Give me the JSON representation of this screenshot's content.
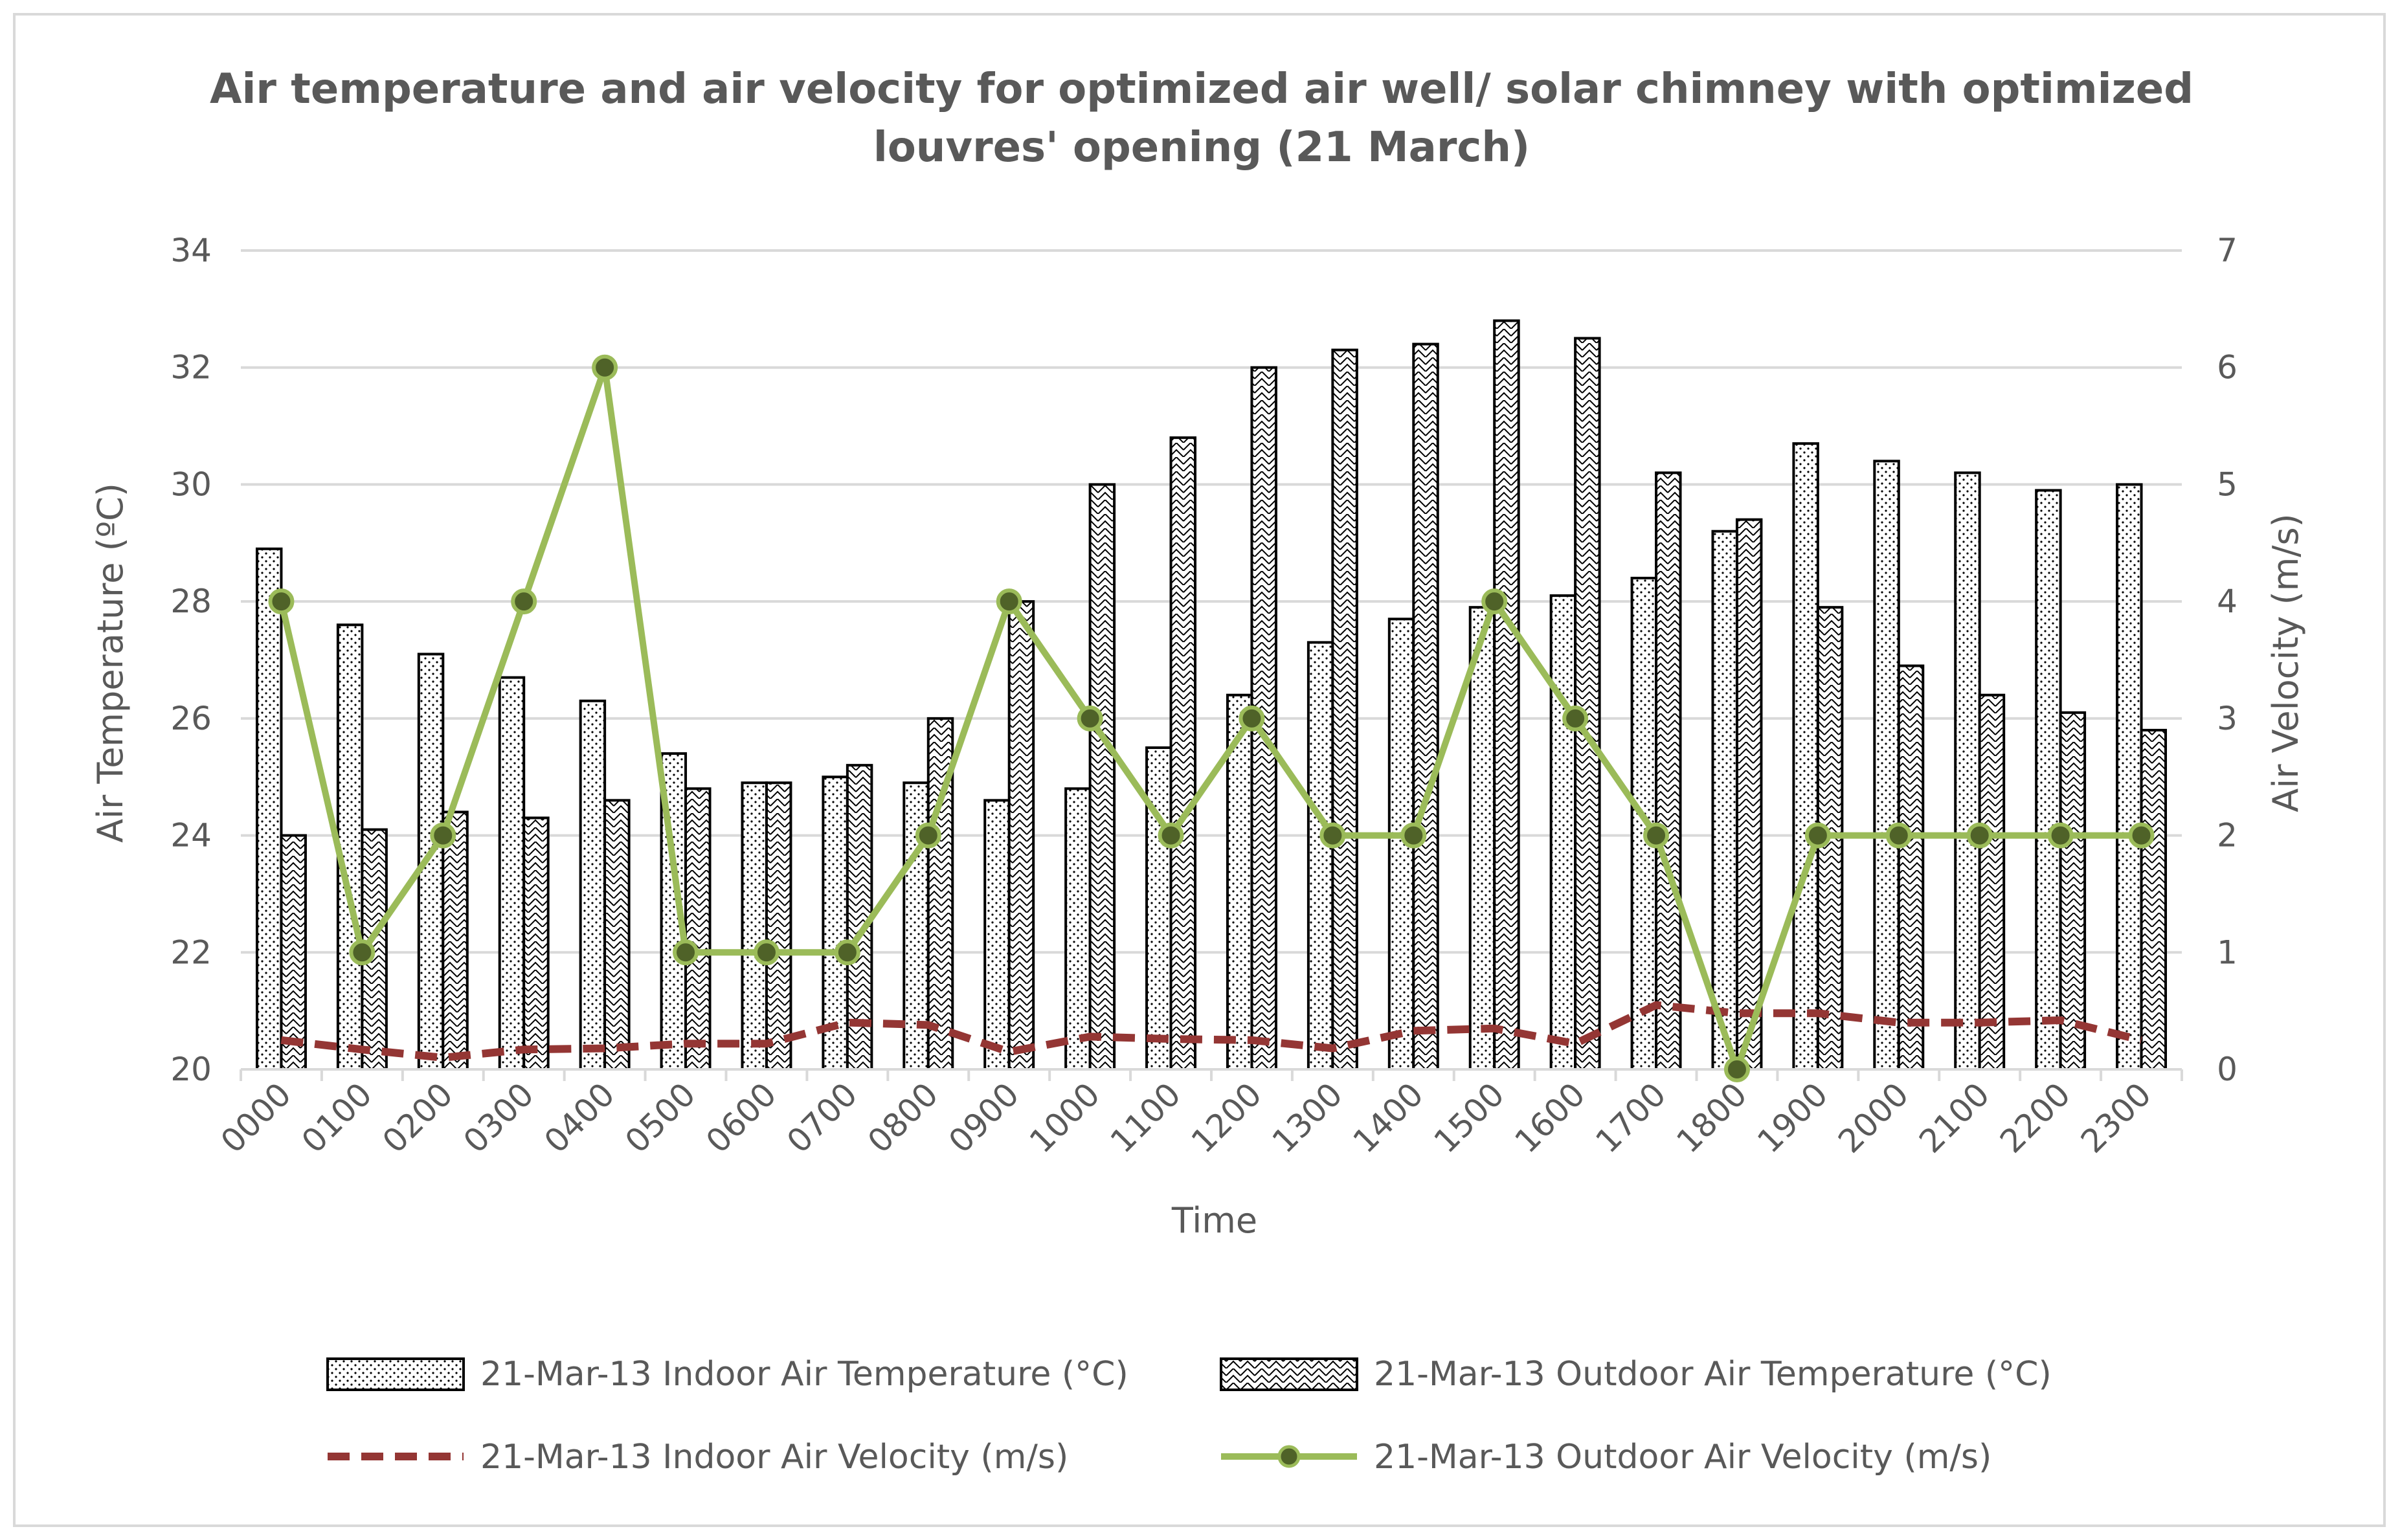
{
  "chart_data": {
    "type": "bar",
    "title_line1": "Air temperature and air velocity for optimized air well/ solar chimney with optimized",
    "title_line2": "louvres' opening (21 March)",
    "xlabel": "Time",
    "ylabel": "Air Temperature (ºC)",
    "y2label": "Air Velocity (m/s)",
    "ylim": [
      20,
      34
    ],
    "yticks": [
      20,
      22,
      24,
      26,
      28,
      30,
      32,
      34
    ],
    "y2lim": [
      0,
      7
    ],
    "y2ticks": [
      0,
      1,
      2,
      3,
      4,
      5,
      6,
      7
    ],
    "grid": true,
    "legend_position": "bottom",
    "categories": [
      "0000",
      "0100",
      "0200",
      "0300",
      "0400",
      "0500",
      "0600",
      "0700",
      "0800",
      "0900",
      "1000",
      "1100",
      "1200",
      "1300",
      "1400",
      "1500",
      "1600",
      "1700",
      "1800",
      "1900",
      "2000",
      "2100",
      "2200",
      "2300"
    ],
    "series": [
      {
        "name": "21-Mar-13 Indoor Air Temperature (°C)",
        "kind": "bar",
        "axis": "left",
        "pattern": "dots",
        "values": [
          28.9,
          27.6,
          27.1,
          26.7,
          26.3,
          25.4,
          24.9,
          25.0,
          24.9,
          24.6,
          24.8,
          25.5,
          26.4,
          27.3,
          27.7,
          27.9,
          28.1,
          28.4,
          29.2,
          30.7,
          30.4,
          30.2,
          29.9,
          30.0
        ]
      },
      {
        "name": "21-Mar-13 Outdoor Air Temperature (°C)",
        "kind": "bar",
        "axis": "left",
        "pattern": "zigzag",
        "values": [
          24.0,
          24.1,
          24.4,
          24.3,
          24.6,
          24.8,
          24.9,
          25.2,
          26.0,
          28.0,
          30.0,
          30.8,
          32.0,
          32.3,
          32.4,
          32.8,
          32.5,
          30.2,
          29.4,
          27.9,
          26.9,
          26.4,
          26.1,
          25.8
        ]
      },
      {
        "name": "21-Mar-13 Indoor Air Velocity (m/s)",
        "kind": "line",
        "axis": "right",
        "style": "dashed",
        "values": [
          0.25,
          0.17,
          0.1,
          0.17,
          0.18,
          0.22,
          0.22,
          0.4,
          0.38,
          0.15,
          0.28,
          0.26,
          0.25,
          0.18,
          0.33,
          0.35,
          0.22,
          0.55,
          0.48,
          0.48,
          0.4,
          0.4,
          0.42,
          0.25
        ]
      },
      {
        "name": "21-Mar-13 Outdoor Air Velocity (m/s)",
        "kind": "line",
        "axis": "right",
        "style": "solid-markers",
        "values": [
          4,
          1,
          2,
          4,
          6,
          1,
          1,
          1,
          2,
          4,
          3,
          2,
          3,
          2,
          2,
          4,
          3,
          2,
          0,
          2,
          2,
          2,
          2,
          2
        ]
      }
    ],
    "colors": {
      "indoor_velocity": "#943634",
      "outdoor_velocity": "#9bbb59",
      "outdoor_velocity_marker": "#4f6228",
      "bar_stroke": "#000000",
      "grid": "#d9d9d9",
      "text": "#595959"
    }
  }
}
